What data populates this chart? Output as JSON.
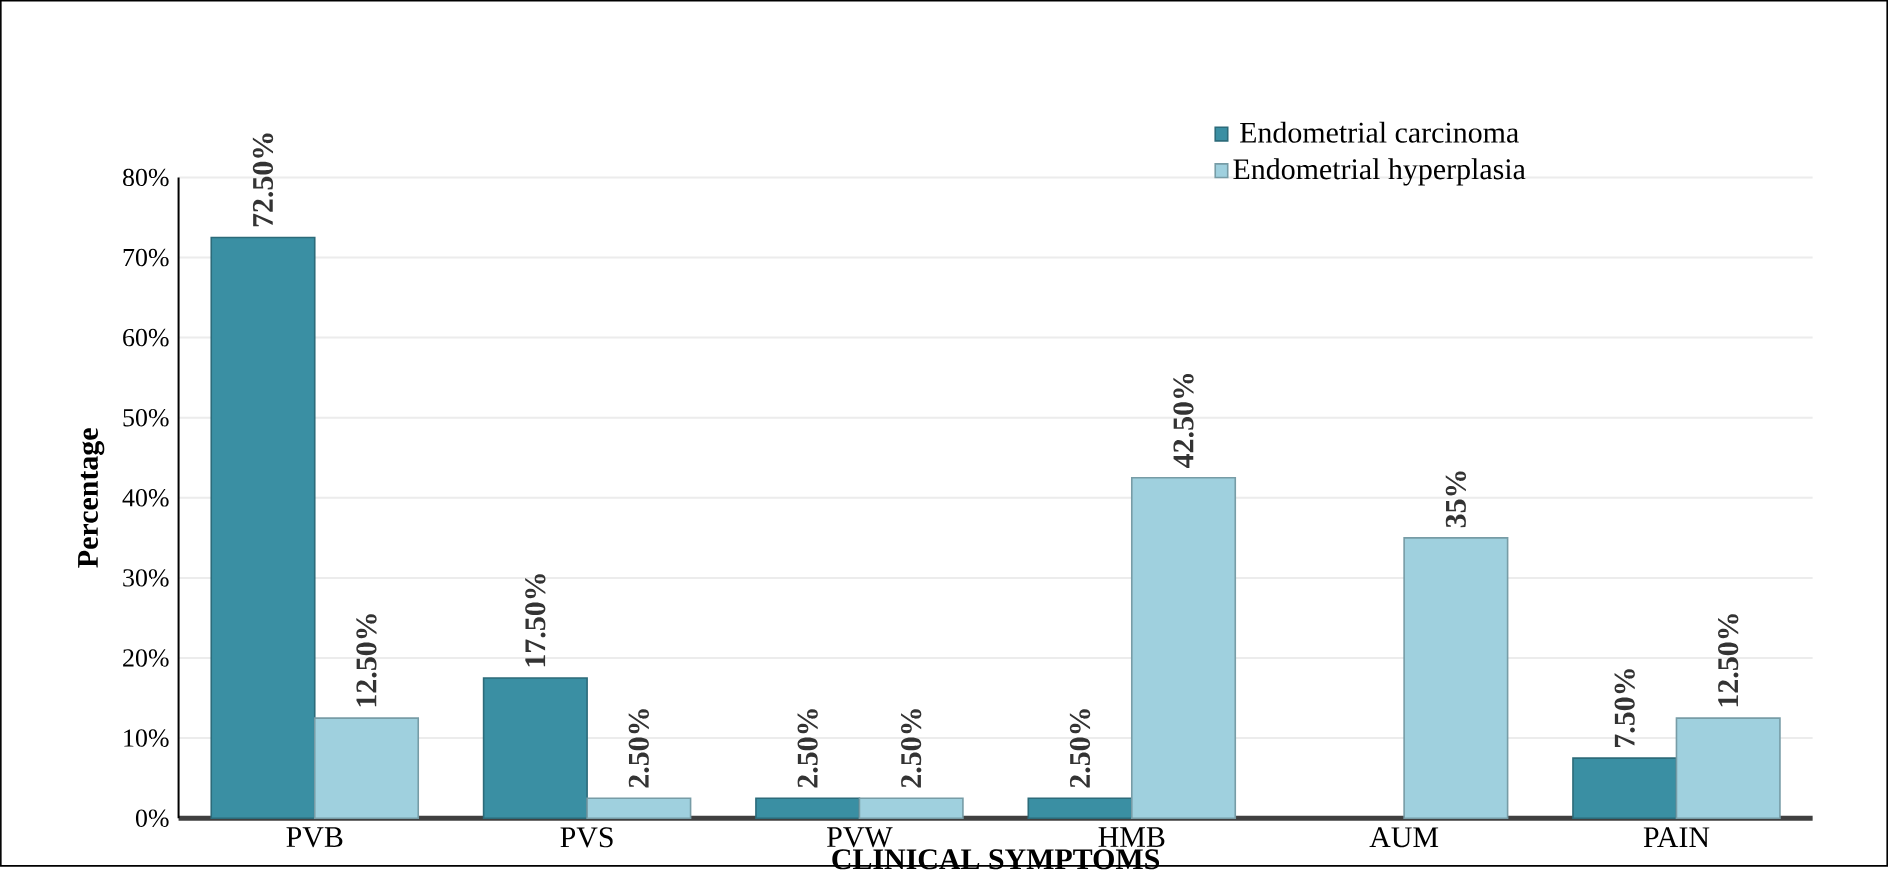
{
  "chart_data": {
    "type": "bar",
    "xlabel": "CLINICAL SYMPTOMS",
    "ylabel": "Percentage",
    "categories": [
      "PVB",
      "PVS",
      "PVW",
      "HMB",
      "AUM",
      "PAIN"
    ],
    "series": [
      {
        "name": "Endometrial carcinoma",
        "color": "#3a8fa3",
        "values": [
          72.5,
          17.5,
          2.5,
          2.5,
          null,
          7.5
        ],
        "value_labels": [
          "72.50%",
          "17.50%",
          "2.50%",
          "2.50%",
          null,
          "7.50%"
        ]
      },
      {
        "name": "Endometrial hyperplasia",
        "color": "#9fd0de",
        "values": [
          12.5,
          2.5,
          2.5,
          42.5,
          35,
          12.5
        ],
        "value_labels": [
          "12.50%",
          "2.50%",
          "2.50%",
          "42.50%",
          "35%",
          "12.50%"
        ]
      }
    ],
    "ylim": [
      0,
      80
    ],
    "yticks": [
      {
        "value": 0,
        "label": "0%"
      },
      {
        "value": 10,
        "label": "10%"
      },
      {
        "value": 20,
        "label": "20%"
      },
      {
        "value": 30,
        "label": "30%"
      },
      {
        "value": 40,
        "label": "40%"
      },
      {
        "value": 50,
        "label": "50%"
      },
      {
        "value": 60,
        "label": "60%"
      },
      {
        "value": 70,
        "label": "70%"
      },
      {
        "value": 80,
        "label": "80%"
      }
    ],
    "grid": "y",
    "legend": "top right"
  }
}
